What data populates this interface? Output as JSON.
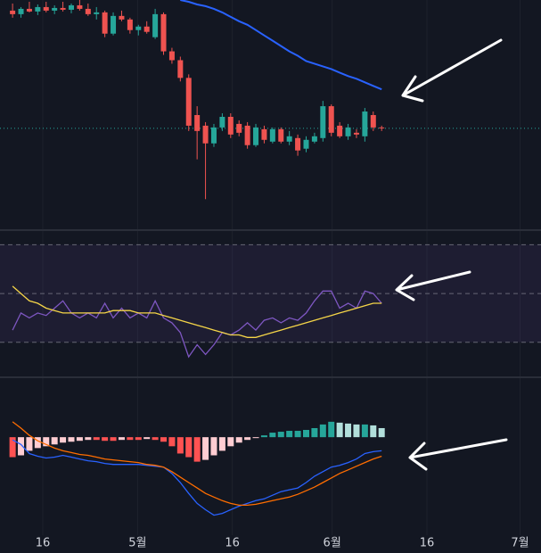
{
  "chart_data": [
    {
      "type": "candlestick",
      "x": [
        0,
        1,
        2,
        3,
        4,
        5,
        6,
        7,
        8,
        9,
        10,
        11,
        12,
        13,
        14,
        15,
        16,
        17,
        18,
        19,
        20,
        21,
        22,
        23,
        24,
        25,
        26,
        27,
        28,
        29,
        30,
        31,
        32,
        33,
        34,
        35,
        36,
        37,
        38,
        39,
        40,
        41,
        42,
        43,
        44
      ],
      "open": [
        248,
        244,
        250,
        247,
        252,
        248,
        251,
        249,
        254,
        250,
        244,
        246,
        222,
        242,
        238,
        226,
        230,
        218,
        244,
        202,
        192,
        172,
        130,
        118,
        98,
        116,
        128,
        120,
        118,
        96,
        114,
        100,
        114,
        100,
        104,
        92,
        100,
        104,
        140,
        118,
        106,
        110,
        106,
        130,
        116
      ],
      "high": [
        256,
        252,
        258,
        255,
        258,
        254,
        258,
        256,
        260,
        256,
        252,
        248,
        246,
        248,
        240,
        232,
        236,
        250,
        246,
        206,
        196,
        176,
        140,
        122,
        120,
        132,
        132,
        124,
        122,
        120,
        118,
        116,
        116,
        112,
        108,
        106,
        110,
        146,
        142,
        122,
        120,
        114,
        138,
        134,
        118
      ],
      "low": [
        240,
        240,
        246,
        243,
        246,
        244,
        247,
        245,
        248,
        242,
        238,
        218,
        220,
        236,
        222,
        220,
        222,
        216,
        198,
        188,
        168,
        112,
        80,
        35,
        94,
        112,
        104,
        106,
        92,
        94,
        98,
        98,
        98,
        96,
        84,
        88,
        98,
        100,
        106,
        104,
        102,
        104,
        100,
        112,
        112
      ],
      "close": [
        244,
        250,
        247,
        252,
        248,
        251,
        249,
        254,
        250,
        244,
        246,
        222,
        242,
        238,
        226,
        230,
        224,
        244,
        202,
        192,
        172,
        118,
        112,
        98,
        116,
        128,
        108,
        110,
        96,
        116,
        102,
        114,
        100,
        106,
        90,
        102,
        106,
        140,
        110,
        106,
        116,
        108,
        134,
        116,
        115
      ],
      "up_color": "#26a69a",
      "down_color": "#ef5350",
      "ma": {
        "color": "#2962ff",
        "values": [
          null,
          null,
          null,
          null,
          null,
          null,
          null,
          null,
          null,
          null,
          null,
          null,
          null,
          null,
          null,
          null,
          null,
          null,
          null,
          null,
          260,
          258,
          255,
          253,
          250,
          246,
          241,
          236,
          232,
          226,
          220,
          214,
          208,
          202,
          197,
          191,
          188,
          185,
          182,
          178,
          174,
          171,
          167,
          163,
          159
        ]
      },
      "price_line": {
        "value": 115,
        "color": "#26a69a"
      },
      "ylim": [
        0,
        260
      ]
    },
    {
      "type": "line",
      "series": [
        {
          "color": "#7e57c2",
          "values": [
            35,
            42,
            40,
            42,
            41,
            44,
            47,
            42,
            40,
            42,
            40,
            46,
            40,
            44,
            40,
            42,
            40,
            47,
            40,
            38,
            34,
            24,
            29,
            25,
            29,
            34,
            33,
            35,
            38,
            35,
            39,
            40,
            38,
            40,
            39,
            42,
            47,
            51,
            51,
            44,
            46,
            44,
            51,
            50,
            46
          ]
        },
        {
          "color": "#f5d548",
          "values": [
            53,
            50,
            47,
            46,
            44,
            43,
            42,
            42,
            42,
            42,
            42,
            42,
            43,
            43,
            43,
            42,
            42,
            42,
            41,
            40,
            39,
            38,
            37,
            36,
            35,
            34,
            33,
            33,
            32,
            32,
            33,
            34,
            35,
            36,
            37,
            38,
            39,
            40,
            41,
            42,
            43,
            44,
            45,
            46,
            46
          ]
        }
      ],
      "levels": [
        30,
        50,
        70
      ],
      "band_color": "#7e57c2",
      "ylim": [
        16,
        76
      ]
    },
    {
      "type": "macd",
      "histogram": [
        -22,
        -20,
        -15,
        -12,
        -10,
        -8,
        -6,
        -5,
        -4,
        -3,
        -3,
        -4,
        -4,
        -3,
        -3,
        -3,
        -2,
        -3,
        -5,
        -10,
        -18,
        -22,
        -27,
        -25,
        -20,
        -15,
        -10,
        -6,
        -3,
        -1,
        2,
        5,
        6,
        7,
        7,
        8,
        10,
        14,
        17,
        16,
        15,
        14,
        14,
        13,
        10
      ],
      "histogram_colors": {
        "pos_up": "#26a69a",
        "pos_down": "#b2dfdb",
        "neg_down": "#ff5252",
        "neg_up": "#ffcdd2"
      },
      "series": [
        {
          "color": "#2962ff",
          "values": [
            -3,
            -8,
            -18,
            -21,
            -23,
            -22,
            -20,
            -22,
            -24,
            -26,
            -27,
            -29,
            -30,
            -30,
            -30,
            -30,
            -31,
            -32,
            -33,
            -40,
            -50,
            -62,
            -73,
            -80,
            -86,
            -84,
            -80,
            -76,
            -73,
            -70,
            -68,
            -64,
            -60,
            -58,
            -56,
            -50,
            -43,
            -38,
            -33,
            -31,
            -28,
            -24,
            -18,
            -16,
            -15
          ]
        },
        {
          "color": "#ff6d00",
          "values": [
            17,
            10,
            2,
            -4,
            -8,
            -12,
            -15,
            -17,
            -19,
            -20,
            -22,
            -24,
            -25,
            -26,
            -27,
            -28,
            -30,
            -31,
            -33,
            -38,
            -44,
            -50,
            -56,
            -62,
            -66,
            -70,
            -73,
            -75,
            -75,
            -74,
            -72,
            -70,
            -68,
            -66,
            -63,
            -59,
            -55,
            -50,
            -45,
            -40,
            -36,
            -32,
            -28,
            -24,
            -21
          ]
        }
      ],
      "ylim": [
        -108,
        67
      ],
      "xlim": [
        -1.5,
        63
      ],
      "xticks": [
        {
          "value": 3.6,
          "label": "16"
        },
        {
          "value": 14.9,
          "label": "5월"
        },
        {
          "value": 26.2,
          "label": "16"
        },
        {
          "value": 38.1,
          "label": "6월"
        },
        {
          "value": 49.4,
          "label": "16"
        },
        {
          "value": 60.5,
          "label": "7월"
        }
      ],
      "grid": true
    }
  ]
}
